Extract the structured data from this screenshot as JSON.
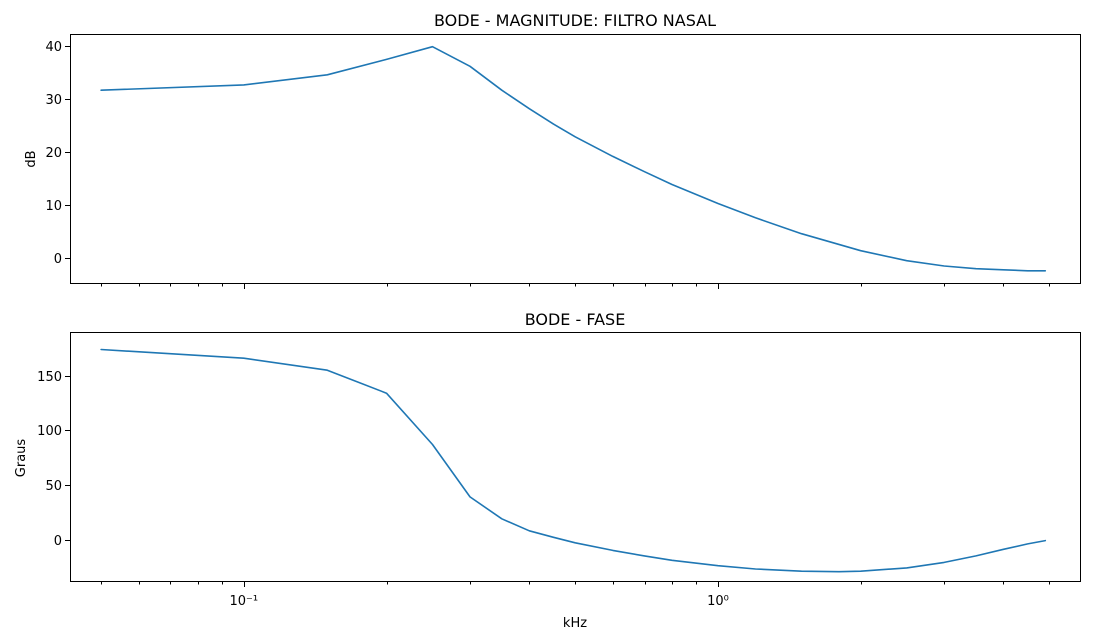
{
  "chart_data": [
    {
      "type": "line",
      "title": "BODE - MAGNITUDE: FILTRO NASAL",
      "xlabel": "",
      "ylabel": "dB",
      "xscale": "log",
      "xlim": [
        0.043,
        5.8
      ],
      "ylim": [
        -4.8,
        42.2
      ],
      "yticks": [
        0,
        10,
        20,
        30,
        40
      ],
      "xtick_labels_shown": false,
      "grid": false,
      "color": "#1f77b4",
      "x": [
        0.05,
        0.1,
        0.15,
        0.2,
        0.25,
        0.3,
        0.35,
        0.4,
        0.45,
        0.5,
        0.6,
        0.7,
        0.8,
        1.0,
        1.2,
        1.5,
        2.0,
        2.5,
        3.0,
        3.5,
        4.0,
        4.5,
        4.9
      ],
      "y": [
        31.6,
        32.6,
        34.5,
        37.4,
        39.8,
        36.1,
        31.6,
        28.1,
        25.2,
        22.8,
        19.1,
        16.2,
        13.8,
        10.2,
        7.5,
        4.5,
        1.3,
        -0.6,
        -1.6,
        -2.1,
        -2.3,
        -2.5,
        -2.5
      ]
    },
    {
      "type": "line",
      "title": "BODE - FASE",
      "xlabel": "kHz",
      "ylabel": "Graus",
      "xscale": "log",
      "xlim": [
        0.043,
        5.8
      ],
      "ylim": [
        -38,
        190
      ],
      "yticks": [
        0,
        50,
        100,
        150
      ],
      "xticks": [
        0.1,
        1
      ],
      "xtick_labels": [
        "10⁻¹",
        "10⁰"
      ],
      "grid": false,
      "color": "#1f77b4",
      "x": [
        0.05,
        0.1,
        0.15,
        0.2,
        0.25,
        0.3,
        0.35,
        0.4,
        0.45,
        0.5,
        0.6,
        0.7,
        0.8,
        1.0,
        1.2,
        1.5,
        1.8,
        2.0,
        2.5,
        3.0,
        3.5,
        4.0,
        4.5,
        4.9
      ],
      "y": [
        174,
        166,
        155,
        134,
        87,
        39,
        19,
        8,
        2,
        -3,
        -10,
        -15,
        -19,
        -24,
        -27,
        -29,
        -29.5,
        -29,
        -26,
        -21,
        -15,
        -9,
        -4,
        -1
      ]
    }
  ]
}
